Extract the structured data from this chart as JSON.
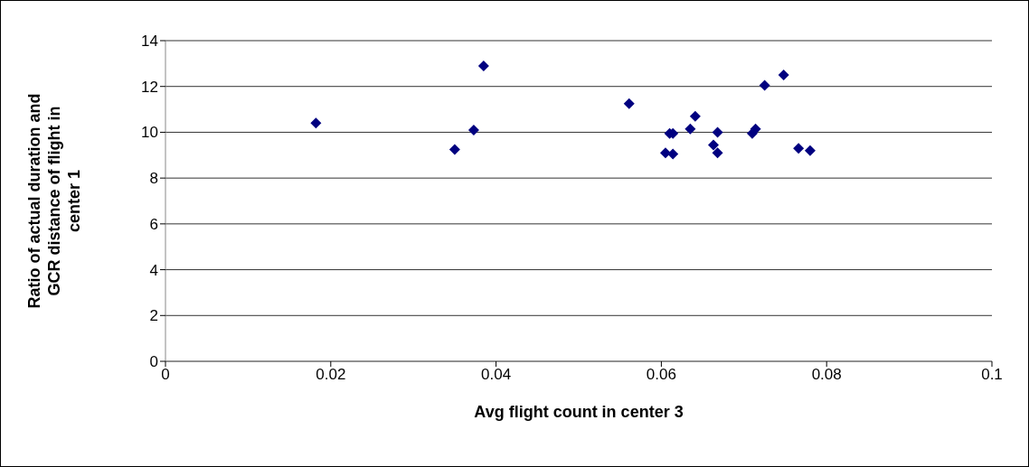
{
  "chart_data": {
    "type": "scatter",
    "xlabel": "Avg flight count in center 3",
    "ylabel": "Ratio of actual duration and GCR distance of flight in center 1",
    "x": [
      0.0182,
      0.035,
      0.0373,
      0.0385,
      0.0561,
      0.0605,
      0.061,
      0.0614,
      0.0614,
      0.0635,
      0.0641,
      0.0663,
      0.0668,
      0.0668,
      0.071,
      0.0714,
      0.0725,
      0.0748,
      0.0766,
      0.078
    ],
    "values": [
      10.4,
      9.25,
      10.1,
      12.9,
      11.25,
      9.1,
      9.95,
      9.95,
      9.05,
      10.15,
      10.7,
      9.45,
      10.0,
      9.1,
      9.95,
      10.15,
      12.05,
      12.5,
      9.3,
      9.2
    ],
    "color": "#000080",
    "marker": "diamond",
    "grid": "y",
    "legend": false,
    "xlim": [
      0,
      0.1
    ],
    "xticks": [
      0,
      0.02,
      0.04,
      0.06,
      0.08,
      0.1
    ],
    "ylim": [
      0,
      14
    ],
    "yticks": [
      0,
      2,
      4,
      6,
      8,
      10,
      12,
      14
    ]
  }
}
